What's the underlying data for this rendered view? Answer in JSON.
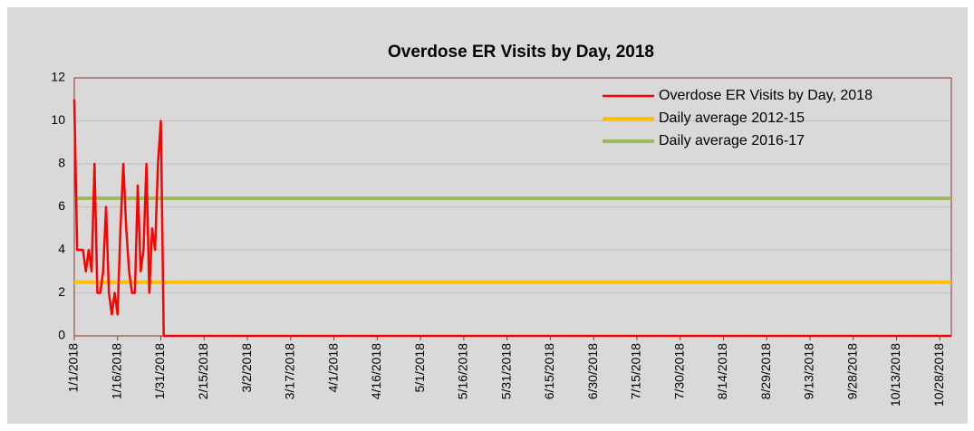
{
  "chart_data": {
    "type": "line",
    "title": "Overdose ER Visits by Day, 2018",
    "categories": [
      "1/1/2018",
      null,
      null,
      null,
      null,
      null,
      null,
      null,
      null,
      null,
      null,
      null,
      null,
      null,
      null,
      "1/16/2018",
      null,
      null,
      null,
      null,
      null,
      null,
      null,
      null,
      null,
      null,
      null,
      null,
      null,
      null,
      "1/31/2018",
      null,
      null,
      null,
      null,
      null,
      null,
      null,
      null,
      null,
      null,
      null,
      null,
      null,
      null,
      "2/15/2018",
      null,
      null,
      null,
      null,
      null,
      null,
      null,
      null,
      null,
      null,
      null,
      null,
      null,
      null,
      "3/2/2018",
      null,
      null,
      null,
      null,
      null,
      null,
      null,
      null,
      null,
      null,
      null,
      null,
      null,
      null,
      "3/17/2018",
      null,
      null,
      null,
      null,
      null,
      null,
      null,
      null,
      null,
      null,
      null,
      null,
      null,
      null,
      "4/1/2018",
      null,
      null,
      null,
      null,
      null,
      null,
      null,
      null,
      null,
      null,
      null,
      null,
      null,
      null,
      "4/16/2018",
      null,
      null,
      null,
      null,
      null,
      null,
      null,
      null,
      null,
      null,
      null,
      null,
      null,
      null,
      "5/1/2018",
      null,
      null,
      null,
      null,
      null,
      null,
      null,
      null,
      null,
      null,
      null,
      null,
      null,
      null,
      "5/16/2018",
      null,
      null,
      null,
      null,
      null,
      null,
      null,
      null,
      null,
      null,
      null,
      null,
      null,
      null,
      "5/31/2018",
      null,
      null,
      null,
      null,
      null,
      null,
      null,
      null,
      null,
      null,
      null,
      null,
      null,
      null,
      "6/15/2018",
      null,
      null,
      null,
      null,
      null,
      null,
      null,
      null,
      null,
      null,
      null,
      null,
      null,
      null,
      "6/30/2018",
      null,
      null,
      null,
      null,
      null,
      null,
      null,
      null,
      null,
      null,
      null,
      null,
      null,
      null,
      "7/15/2018",
      null,
      null,
      null,
      null,
      null,
      null,
      null,
      null,
      null,
      null,
      null,
      null,
      null,
      null,
      "7/30/2018",
      null,
      null,
      null,
      null,
      null,
      null,
      null,
      null,
      null,
      null,
      null,
      null,
      null,
      null,
      "8/14/2018",
      null,
      null,
      null,
      null,
      null,
      null,
      null,
      null,
      null,
      null,
      null,
      null,
      null,
      null,
      "8/29/2018",
      null,
      null,
      null,
      null,
      null,
      null,
      null,
      null,
      null,
      null,
      null,
      null,
      null,
      null,
      "9/13/2018",
      null,
      null,
      null,
      null,
      null,
      null,
      null,
      null,
      null,
      null,
      null,
      null,
      null,
      null,
      "9/28/2018",
      null,
      null,
      null,
      null,
      null,
      null,
      null,
      null,
      null,
      null,
      null,
      null,
      null,
      null,
      "10/13/2018",
      null,
      null,
      null,
      null,
      null,
      null,
      null,
      null,
      null,
      null,
      null,
      null,
      null,
      null,
      "10/28/2018",
      null,
      null,
      null,
      null
    ],
    "series": [
      {
        "name": "Overdose ER Visits by Day, 2018",
        "color": "#ff0000",
        "values": [
          11,
          4,
          4,
          4,
          3,
          4,
          3,
          8,
          2,
          2,
          3,
          6,
          2,
          1,
          2,
          1,
          5,
          8,
          5,
          3,
          2,
          2,
          7,
          3,
          4,
          8,
          2,
          5,
          4,
          8,
          10,
          0,
          0,
          0,
          0,
          0,
          0,
          0,
          0,
          0,
          0,
          0,
          0,
          0,
          0,
          0,
          0,
          0,
          0,
          0,
          0,
          0,
          0,
          0,
          0,
          0,
          0,
          0,
          0,
          0,
          0,
          0,
          0,
          0,
          0,
          0,
          0,
          0,
          0,
          0,
          0,
          0,
          0,
          0,
          0,
          0,
          0,
          0,
          0,
          0,
          0,
          0,
          0,
          0,
          0,
          0,
          0,
          0,
          0,
          0,
          0,
          0,
          0,
          0,
          0,
          0,
          0,
          0,
          0,
          0,
          0,
          0,
          0,
          0,
          0,
          0,
          0,
          0,
          0,
          0,
          0,
          0,
          0,
          0,
          0,
          0,
          0,
          0,
          0,
          0,
          0,
          0,
          0,
          0,
          0,
          0,
          0,
          0,
          0,
          0,
          0,
          0,
          0,
          0,
          0,
          0,
          0,
          0,
          0,
          0,
          0,
          0,
          0,
          0,
          0,
          0,
          0,
          0,
          0,
          0,
          0,
          0,
          0,
          0,
          0,
          0,
          0,
          0,
          0,
          0,
          0,
          0,
          0,
          0,
          0,
          0,
          0,
          0,
          0,
          0,
          0,
          0,
          0,
          0,
          0,
          0,
          0,
          0,
          0,
          0,
          0,
          0,
          0,
          0,
          0,
          0,
          0,
          0,
          0,
          0,
          0,
          0,
          0,
          0,
          0,
          0,
          0,
          0,
          0,
          0,
          0,
          0,
          0,
          0,
          0,
          0,
          0,
          0,
          0,
          0,
          0,
          0,
          0,
          0,
          0,
          0,
          0,
          0,
          0,
          0,
          0,
          0,
          0,
          0,
          0,
          0,
          0,
          0,
          0,
          0,
          0,
          0,
          0,
          0,
          0,
          0,
          0,
          0,
          0,
          0,
          0,
          0,
          0,
          0,
          0,
          0,
          0,
          0,
          0,
          0,
          0,
          0,
          0,
          0,
          0,
          0,
          0,
          0,
          0,
          0,
          0,
          0,
          0,
          0,
          0,
          0,
          0,
          0,
          0,
          0,
          0,
          0,
          0,
          0,
          0,
          0,
          0,
          0,
          0,
          0,
          0,
          0,
          0,
          0,
          0,
          0,
          0,
          0,
          0,
          0,
          0,
          0,
          0,
          0,
          0,
          0,
          0,
          0,
          0,
          0,
          0,
          0,
          0,
          0,
          0
        ]
      }
    ],
    "reference_lines": [
      {
        "name": "Daily average 2012-15",
        "color": "#ffc000",
        "value": 2.5
      },
      {
        "name": "Daily average 2016-17",
        "color": "#9bbb59",
        "value": 6.4
      }
    ],
    "ylim": [
      0,
      12
    ],
    "yticks": [
      0,
      2,
      4,
      6,
      8,
      10,
      12
    ],
    "grid": true,
    "legend": "top-right"
  }
}
